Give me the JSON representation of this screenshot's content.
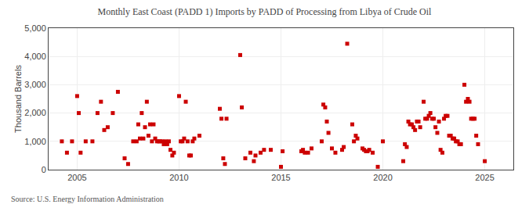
{
  "chart_data": {
    "type": "scatter",
    "title": "Monthly East Coast (PADD 1) Imports by PADD of Processing from Libya of Crude Oil",
    "ylabel": "Thousand Barrels",
    "annotations": [
      "Source: U.S. Energy Information Administration"
    ],
    "color": "#cc0000",
    "marker": "square",
    "grid": true,
    "xlim": [
      2003.6,
      2026.4
    ],
    "xticks": [
      2005,
      2010,
      2015,
      2020,
      2025
    ],
    "ylim": [
      0,
      5000
    ],
    "yticks": [
      0,
      {
        "value": 1000,
        "label": "1,000"
      },
      {
        "value": 2000,
        "label": "2,000"
      },
      {
        "value": 3000,
        "label": "3,000"
      },
      {
        "value": 4000,
        "label": "4,000"
      },
      {
        "value": 5000,
        "label": "5,000"
      }
    ],
    "x": [
      2004.25,
      2004.5,
      2004.75,
      2005.0,
      2005.08,
      2005.17,
      2005.42,
      2005.75,
      2006.0,
      2006.17,
      2006.33,
      2006.5,
      2006.75,
      2007.0,
      2007.33,
      2007.5,
      2007.75,
      2007.92,
      2008.0,
      2008.08,
      2008.17,
      2008.25,
      2008.33,
      2008.42,
      2008.5,
      2008.58,
      2008.67,
      2008.75,
      2008.83,
      2008.92,
      2009.0,
      2009.08,
      2009.17,
      2009.25,
      2009.33,
      2009.42,
      2009.5,
      2009.58,
      2009.67,
      2009.75,
      2010.0,
      2010.08,
      2010.17,
      2010.25,
      2010.33,
      2010.42,
      2010.5,
      2010.58,
      2010.67,
      2010.75,
      2011.0,
      2012.0,
      2012.08,
      2012.17,
      2012.25,
      2012.33,
      2013.0,
      2013.08,
      2013.25,
      2013.5,
      2013.67,
      2013.75,
      2014.0,
      2014.17,
      2014.5,
      2015.0,
      2015.08,
      2016.0,
      2016.08,
      2016.17,
      2016.33,
      2016.5,
      2017.0,
      2017.08,
      2017.17,
      2017.25,
      2017.33,
      2017.5,
      2017.67,
      2018.0,
      2018.08,
      2018.25,
      2018.5,
      2018.58,
      2018.67,
      2018.75,
      2019.0,
      2019.08,
      2019.17,
      2019.25,
      2019.33,
      2019.5,
      2019.75,
      2020.0,
      2021.0,
      2021.08,
      2021.17,
      2021.25,
      2021.33,
      2021.42,
      2021.5,
      2021.58,
      2021.67,
      2021.75,
      2021.83,
      2022.0,
      2022.08,
      2022.17,
      2022.25,
      2022.33,
      2022.42,
      2022.5,
      2022.58,
      2022.67,
      2022.75,
      2022.83,
      2022.92,
      2023.0,
      2023.08,
      2023.17,
      2023.25,
      2023.33,
      2023.42,
      2023.5,
      2023.58,
      2023.67,
      2023.75,
      2023.83,
      2024.0,
      2024.08,
      2024.17,
      2024.25,
      2024.33,
      2024.42,
      2024.5,
      2024.58,
      2024.67,
      2025.0
    ],
    "values": [
      1000,
      600,
      1000,
      2600,
      2000,
      600,
      1000,
      1000,
      2000,
      2400,
      1400,
      1500,
      2000,
      2750,
      400,
      200,
      1000,
      1000,
      1600,
      1100,
      2000,
      1100,
      1500,
      2400,
      1200,
      1600,
      1000,
      1600,
      1100,
      1000,
      1000,
      1000,
      1000,
      900,
      1000,
      900,
      1000,
      700,
      500,
      600,
      2600,
      1000,
      1000,
      1100,
      2400,
      1000,
      500,
      500,
      1000,
      1100,
      1200,
      2150,
      1800,
      400,
      200,
      1800,
      4050,
      2200,
      400,
      600,
      300,
      500,
      600,
      700,
      700,
      100,
      650,
      650,
      700,
      600,
      600,
      750,
      1000,
      2300,
      2200,
      1700,
      1300,
      750,
      600,
      700,
      800,
      4450,
      1600,
      1000,
      1200,
      1100,
      750,
      700,
      650,
      650,
      700,
      600,
      100,
      1000,
      300,
      900,
      800,
      1700,
      1600,
      1600,
      1500,
      1400,
      1700,
      1700,
      1500,
      2400,
      1800,
      1800,
      1900,
      2000,
      1800,
      1800,
      1500,
      1300,
      1700,
      700,
      600,
      1800,
      1900,
      1900,
      1200,
      1200,
      1100,
      1100,
      1000,
      1000,
      900,
      900,
      3000,
      2400,
      2500,
      2400,
      1800,
      1800,
      1800,
      1200,
      900,
      300
    ]
  }
}
